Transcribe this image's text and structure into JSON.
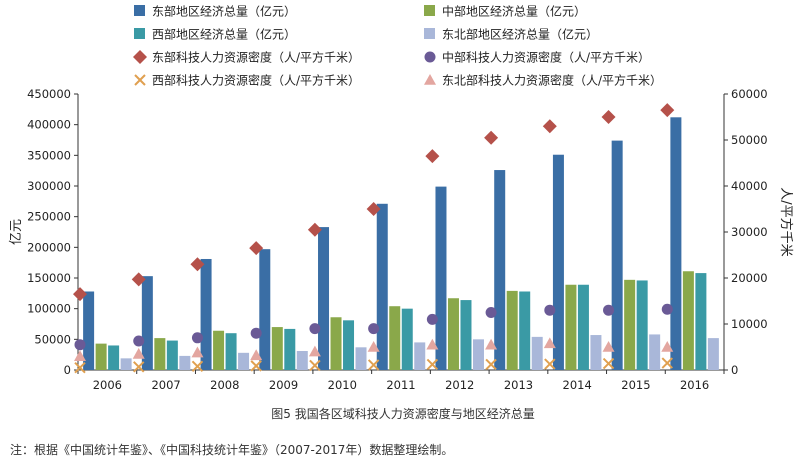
{
  "chart_data": {
    "type": "bar",
    "categories": [
      "2006",
      "2007",
      "2008",
      "2009",
      "2010",
      "2011",
      "2012",
      "2013",
      "2014",
      "2015",
      "2016"
    ],
    "bar_series": [
      {
        "name": "东部地区经济总量（亿元）",
        "color": "#3a6ea5",
        "values": [
          128000,
          153000,
          181000,
          197000,
          233000,
          271000,
          299000,
          326000,
          351000,
          374000,
          412000
        ]
      },
      {
        "name": "中部地区经济总量（亿元）",
        "color": "#8aa84a",
        "values": [
          43000,
          52000,
          64000,
          70000,
          86000,
          104000,
          117000,
          129000,
          139000,
          147000,
          161000
        ]
      },
      {
        "name": "西部地区经济总量（亿元）",
        "color": "#3a9aa5",
        "values": [
          40000,
          48000,
          60000,
          67000,
          81000,
          100000,
          114000,
          128000,
          139000,
          146000,
          158000
        ]
      },
      {
        "name": "东北部地区经济总量（亿元）",
        "color": "#a9b7d9",
        "values": [
          19000,
          23000,
          28000,
          31000,
          37000,
          45000,
          50000,
          54000,
          57000,
          58000,
          52000
        ]
      }
    ],
    "marker_series": [
      {
        "name": "东部科技人力资源密度（人/平方千米）",
        "marker": "diamond",
        "color": "#b5514a",
        "values": [
          16500,
          19700,
          23000,
          26500,
          30500,
          35000,
          46500,
          50500,
          53000,
          55000,
          56500
        ]
      },
      {
        "name": "中部科技人力资源密度（人/平方千米）",
        "marker": "circle",
        "color": "#6a5a96",
        "values": [
          5500,
          6300,
          7000,
          8000,
          9000,
          9000,
          11000,
          12500,
          13000,
          13000,
          13200
        ]
      },
      {
        "name": "西部科技人力资源密度（人/平方千米）",
        "marker": "x",
        "color": "#e0a050",
        "values": [
          500,
          700,
          800,
          900,
          1000,
          1100,
          1200,
          1200,
          1300,
          1400,
          1500
        ]
      },
      {
        "name": "东北部科技人力资源密度（人/平方千米）",
        "marker": "triangle",
        "color": "#e3a6a0",
        "values": [
          3000,
          3500,
          3800,
          3200,
          4000,
          5000,
          5500,
          5500,
          5800,
          5000,
          5000
        ]
      }
    ],
    "y_left": {
      "label": "亿元",
      "min": 0,
      "max": 450000,
      "ticks": [
        0,
        50000,
        100000,
        150000,
        200000,
        250000,
        300000,
        350000,
        400000,
        450000
      ]
    },
    "y_right": {
      "label": "人/平方千米",
      "min": 0,
      "max": 60000,
      "ticks": [
        0,
        10000,
        20000,
        30000,
        40000,
        50000,
        60000
      ]
    },
    "legend_position": "top",
    "grid": false
  },
  "caption": "图5   我国各区域科技人力资源密度与地区经济总量",
  "note": "注：根据《中国统计年鉴》、《中国科技统计年鉴》（2007-2017年）数据整理绘制。"
}
